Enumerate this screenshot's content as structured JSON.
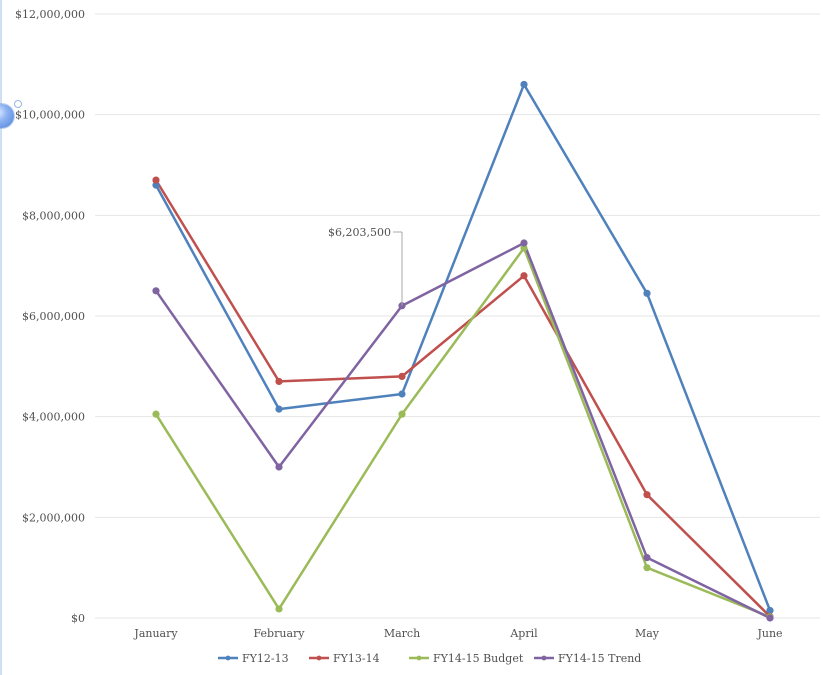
{
  "chart_data": {
    "type": "line",
    "categories": [
      "January",
      "February",
      "March",
      "April",
      "May",
      "June"
    ],
    "y_tick_labels": [
      "$0",
      "$2,000,000",
      "$4,000,000",
      "$6,000,000",
      "$8,000,000",
      "$10,000,000",
      "$12,000,000"
    ],
    "ylim": [
      0,
      12000000
    ],
    "grid": true,
    "legend_position": "bottom",
    "series": [
      {
        "name": "FY12-13",
        "color": "#4f81bd",
        "values": [
          8600000,
          4150000,
          4450000,
          10600000,
          6450000,
          150000
        ]
      },
      {
        "name": "FY13-14",
        "color": "#c0504d",
        "values": [
          8700000,
          4700000,
          4800000,
          6800000,
          2450000,
          30000
        ]
      },
      {
        "name": "FY14-15 Budget",
        "color": "#9bbb59",
        "values": [
          4050000,
          180000,
          4050000,
          7350000,
          1000000,
          20000
        ]
      },
      {
        "name": "FY14-15 Trend",
        "color": "#8064a2",
        "values": [
          6500000,
          3000000,
          6203500,
          7450000,
          1200000,
          0
        ]
      }
    ],
    "annotation": {
      "series_index": 3,
      "category_index": 2,
      "label": "$6,203,500"
    }
  }
}
